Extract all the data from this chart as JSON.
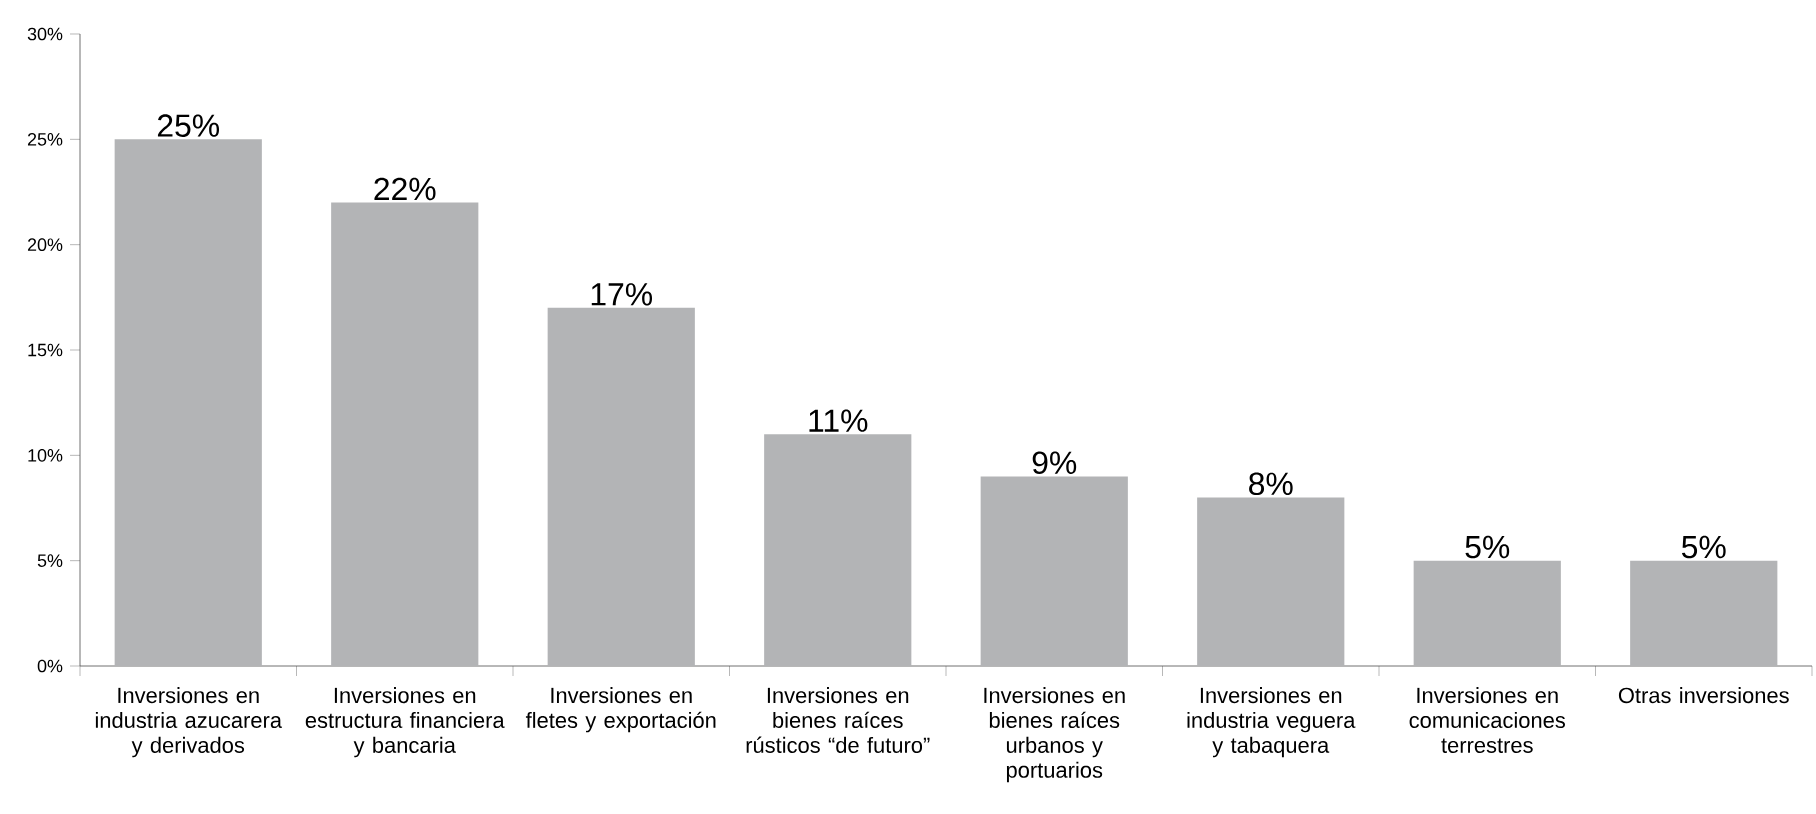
{
  "chart_data": {
    "type": "bar",
    "categories": [
      "Inversiones en industria azucarera y derivados",
      "Inversiones en estructura financiera y bancaria",
      "Inversiones en fletes y exportación",
      "Inversiones en bienes raíces rústicos “de futuro”",
      "Inversiones en bienes raíces urbanos y portuarios",
      "Inversiones en industria veguera y tabaquera",
      "Inversiones en comunicaciones terrestres",
      "Otras inversiones"
    ],
    "values": [
      25,
      22,
      17,
      11,
      9,
      8,
      5,
      5
    ],
    "value_labels": [
      "25%",
      "22%",
      "17%",
      "11%",
      "9%",
      "8%",
      "5%",
      "5%"
    ],
    "color": "#b3b4b6",
    "ylim": [
      0,
      30
    ],
    "yticks": [
      {
        "value": 0,
        "label": "0%"
      },
      {
        "value": 5,
        "label": "5%"
      },
      {
        "value": 10,
        "label": "10%"
      },
      {
        "value": 15,
        "label": "15%"
      },
      {
        "value": 20,
        "label": "20%"
      },
      {
        "value": 25,
        "label": "25%"
      },
      {
        "value": 30,
        "label": "30%"
      }
    ],
    "grid": false
  }
}
